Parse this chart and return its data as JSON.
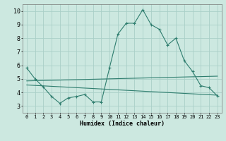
{
  "title": "",
  "xlabel": "Humidex (Indice chaleur)",
  "ylabel": "",
  "bg_color": "#cce8e0",
  "line_color": "#2e7d6e",
  "grid_color": "#aacfc8",
  "xlim": [
    -0.5,
    23.5
  ],
  "ylim": [
    2.5,
    10.5
  ],
  "xticks": [
    0,
    1,
    2,
    3,
    4,
    5,
    6,
    7,
    8,
    9,
    10,
    11,
    12,
    13,
    14,
    15,
    16,
    17,
    18,
    19,
    20,
    21,
    22,
    23
  ],
  "yticks": [
    3,
    4,
    5,
    6,
    7,
    8,
    9,
    10
  ],
  "series": [
    [
      0,
      5.8
    ],
    [
      1,
      5.0
    ],
    [
      2,
      4.4
    ],
    [
      3,
      3.7
    ],
    [
      4,
      3.2
    ],
    [
      5,
      3.6
    ],
    [
      6,
      3.7
    ],
    [
      7,
      3.85
    ],
    [
      8,
      3.3
    ],
    [
      9,
      3.3
    ],
    [
      10,
      5.85
    ],
    [
      11,
      8.3
    ],
    [
      12,
      9.1
    ],
    [
      13,
      9.1
    ],
    [
      14,
      10.1
    ],
    [
      15,
      9.0
    ],
    [
      16,
      8.65
    ],
    [
      17,
      7.5
    ],
    [
      18,
      8.0
    ],
    [
      19,
      6.35
    ],
    [
      20,
      5.55
    ],
    [
      21,
      4.5
    ],
    [
      22,
      4.35
    ],
    [
      23,
      3.75
    ]
  ],
  "line2": [
    [
      0,
      4.85
    ],
    [
      23,
      5.2
    ]
  ],
  "line3": [
    [
      0,
      4.55
    ],
    [
      23,
      3.8
    ]
  ]
}
